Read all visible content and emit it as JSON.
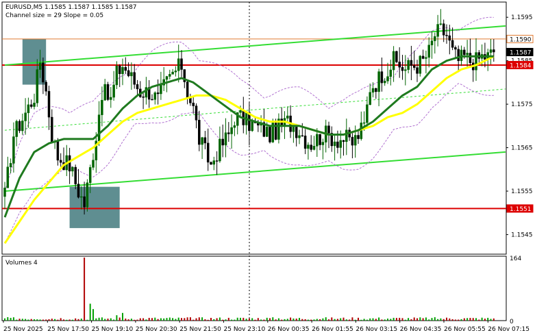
{
  "header": {
    "title": "EURUSD,M5  1.1585 1.1587 1.1585 1.1587",
    "subtitle": "Channel size = 29 Slope = 0.05"
  },
  "volume_panel": {
    "title": "Volumes 4"
  },
  "colors": {
    "bull": "#006400",
    "bear": "#000000",
    "ma_fast": "#1f7a1f",
    "ma_slow": "#ffff00",
    "channel": "#33dd33",
    "envelope": "#b070d0",
    "level": "#dd0000",
    "zone": "#5f8e91",
    "price_tag_bg": "#dd0000",
    "current_tag_bg": "#000000"
  },
  "chart_data": [
    {
      "type": "candlestick",
      "symbol": "EURUSD",
      "timeframe": "M5",
      "ylim": [
        1.15405,
        1.15985
      ],
      "y_ticks": [
        "1.1595",
        "1.1585",
        "1.1575",
        "1.1565",
        "1.1555",
        "1.1545"
      ],
      "x_tick_labels": [
        "25 Nov 2025",
        "25 Nov 17:50",
        "25 Nov 19:10",
        "25 Nov 20:30",
        "25 Nov 21:50",
        "25 Nov 23:10",
        "26 Nov 00:35",
        "26 Nov 01:55",
        "26 Nov 03:15",
        "26 Nov 04:35",
        "26 Nov 05:55",
        "26 Nov 07:15"
      ],
      "price_tags": [
        {
          "label": "1.1590",
          "price": 1.159,
          "style": "line"
        },
        {
          "label": "1.1587",
          "price": 1.1587,
          "style": "current"
        },
        {
          "label": "1.1584",
          "price": 1.1584,
          "style": "level"
        },
        {
          "label": "1.1551",
          "price": 1.1551,
          "style": "level"
        }
      ],
      "levels": [
        1.1584,
        1.1551
      ],
      "zones": [
        {
          "from_index": 6,
          "to_index": 14,
          "y_top": 1.159,
          "y_bottom": 1.15795
        },
        {
          "from_index": 22,
          "to_index": 39,
          "y_top": 1.1556,
          "y_bottom": 1.15465
        }
      ],
      "channel": [
        {
          "from_index": 0,
          "from_price": 1.1584,
          "to_index": 170,
          "to_price": 1.1593
        },
        {
          "from_index": 0,
          "from_price": 1.1555,
          "to_index": 170,
          "to_price": 1.1564
        },
        {
          "from_index": 0,
          "from_price": 1.1569,
          "to_index": 170,
          "to_price": 1.15785
        }
      ],
      "series": [
        {
          "name": "candles",
          "anchors": [
            [
              0,
              1.1554
            ],
            [
              3,
              1.1568
            ],
            [
              7,
              1.1573
            ],
            [
              10,
              1.1577
            ],
            [
              12,
              1.1585
            ],
            [
              14,
              1.1578
            ],
            [
              16,
              1.1568
            ],
            [
              18,
              1.1563
            ],
            [
              22,
              1.1561
            ],
            [
              25,
              1.1555
            ],
            [
              27,
              1.1552
            ],
            [
              29,
              1.156
            ],
            [
              31,
              1.1568
            ],
            [
              33,
              1.1578
            ],
            [
              36,
              1.1576
            ],
            [
              38,
              1.1582
            ],
            [
              40,
              1.1584
            ],
            [
              43,
              1.1581
            ],
            [
              46,
              1.1578
            ],
            [
              49,
              1.1578
            ],
            [
              52,
              1.1576
            ],
            [
              54,
              1.1579
            ],
            [
              57,
              1.1582
            ],
            [
              60,
              1.1584
            ],
            [
              62,
              1.1578
            ],
            [
              64,
              1.1574
            ],
            [
              66,
              1.1567
            ],
            [
              68,
              1.1564
            ],
            [
              70,
              1.1561
            ],
            [
              72,
              1.1564
            ],
            [
              74,
              1.1566
            ],
            [
              76,
              1.1568
            ],
            [
              78,
              1.1572
            ],
            [
              80,
              1.1572
            ],
            [
              82,
              1.1571
            ],
            [
              85,
              1.157
            ],
            [
              88,
              1.1569
            ],
            [
              90,
              1.1568
            ],
            [
              92,
              1.1569
            ],
            [
              94,
              1.157
            ],
            [
              96,
              1.1571
            ],
            [
              98,
              1.157
            ],
            [
              100,
              1.1569
            ],
            [
              102,
              1.1567
            ],
            [
              104,
              1.1566
            ],
            [
              106,
              1.1567
            ],
            [
              108,
              1.1568
            ],
            [
              110,
              1.1568
            ],
            [
              112,
              1.1567
            ],
            [
              114,
              1.1567
            ],
            [
              116,
              1.1567
            ],
            [
              118,
              1.1566
            ],
            [
              120,
              1.1568
            ],
            [
              122,
              1.157
            ],
            [
              124,
              1.1579
            ],
            [
              126,
              1.158
            ],
            [
              128,
              1.1582
            ],
            [
              130,
              1.1583
            ],
            [
              132,
              1.1585
            ],
            [
              134,
              1.1584
            ],
            [
              136,
              1.1583
            ],
            [
              138,
              1.1584
            ],
            [
              140,
              1.1584
            ],
            [
              142,
              1.1585
            ],
            [
              144,
              1.1587
            ],
            [
              146,
              1.1591
            ],
            [
              148,
              1.1592
            ],
            [
              150,
              1.1591
            ],
            [
              152,
              1.1587
            ],
            [
              154,
              1.1585
            ],
            [
              156,
              1.1586
            ],
            [
              158,
              1.1585
            ],
            [
              160,
              1.1585
            ],
            [
              162,
              1.1586
            ],
            [
              164,
              1.1586
            ],
            [
              166,
              1.1587
            ]
          ]
        },
        {
          "name": "ma_fast",
          "points": [
            [
              0,
              1.1549
            ],
            [
              5,
              1.1558
            ],
            [
              10,
              1.1564
            ],
            [
              15,
              1.1566
            ],
            [
              20,
              1.1567
            ],
            [
              25,
              1.1567
            ],
            [
              30,
              1.1567
            ],
            [
              35,
              1.157
            ],
            [
              40,
              1.1574
            ],
            [
              45,
              1.1577
            ],
            [
              50,
              1.1579
            ],
            [
              55,
              1.158
            ],
            [
              60,
              1.1581
            ],
            [
              64,
              1.158
            ],
            [
              68,
              1.1578
            ],
            [
              72,
              1.1576
            ],
            [
              76,
              1.1574
            ],
            [
              80,
              1.1572
            ],
            [
              85,
              1.1571
            ],
            [
              90,
              1.157
            ],
            [
              95,
              1.157
            ],
            [
              100,
              1.157
            ],
            [
              105,
              1.1569
            ],
            [
              110,
              1.1568
            ],
            [
              115,
              1.1568
            ],
            [
              120,
              1.1569
            ],
            [
              125,
              1.1571
            ],
            [
              130,
              1.1574
            ],
            [
              135,
              1.1577
            ],
            [
              140,
              1.1579
            ],
            [
              145,
              1.1583
            ],
            [
              150,
              1.1585
            ],
            [
              155,
              1.1586
            ],
            [
              160,
              1.1586
            ],
            [
              166,
              1.1586
            ]
          ]
        },
        {
          "name": "ma_slow",
          "points": [
            [
              0,
              1.1543
            ],
            [
              5,
              1.1548
            ],
            [
              10,
              1.1553
            ],
            [
              15,
              1.1557
            ],
            [
              20,
              1.1561
            ],
            [
              25,
              1.1563
            ],
            [
              30,
              1.1565
            ],
            [
              35,
              1.1568
            ],
            [
              40,
              1.1571
            ],
            [
              45,
              1.1573
            ],
            [
              50,
              1.1574
            ],
            [
              55,
              1.1575
            ],
            [
              60,
              1.1576
            ],
            [
              65,
              1.1577
            ],
            [
              70,
              1.1577
            ],
            [
              75,
              1.1576
            ],
            [
              80,
              1.1574
            ],
            [
              85,
              1.1572
            ],
            [
              90,
              1.1571
            ],
            [
              95,
              1.1571
            ],
            [
              100,
              1.157
            ],
            [
              105,
              1.1569
            ],
            [
              110,
              1.1568
            ],
            [
              115,
              1.1568
            ],
            [
              120,
              1.1569
            ],
            [
              125,
              1.157
            ],
            [
              130,
              1.1572
            ],
            [
              135,
              1.1573
            ],
            [
              140,
              1.1575
            ],
            [
              145,
              1.1578
            ],
            [
              150,
              1.1581
            ],
            [
              155,
              1.1583
            ],
            [
              160,
              1.1584
            ],
            [
              166,
              1.1586
            ]
          ]
        }
      ]
    },
    {
      "type": "bar",
      "title": "Volumes 4",
      "ylim": [
        0,
        164
      ],
      "y_ticks": [
        "164",
        "0"
      ],
      "spikes": [
        {
          "index": 27,
          "value": 164
        },
        {
          "index": 29,
          "value": 44
        },
        {
          "index": 30,
          "value": 30
        },
        {
          "index": 40,
          "value": 20
        },
        {
          "index": 38,
          "value": 14
        }
      ],
      "baseline_range": [
        2,
        9
      ]
    }
  ]
}
